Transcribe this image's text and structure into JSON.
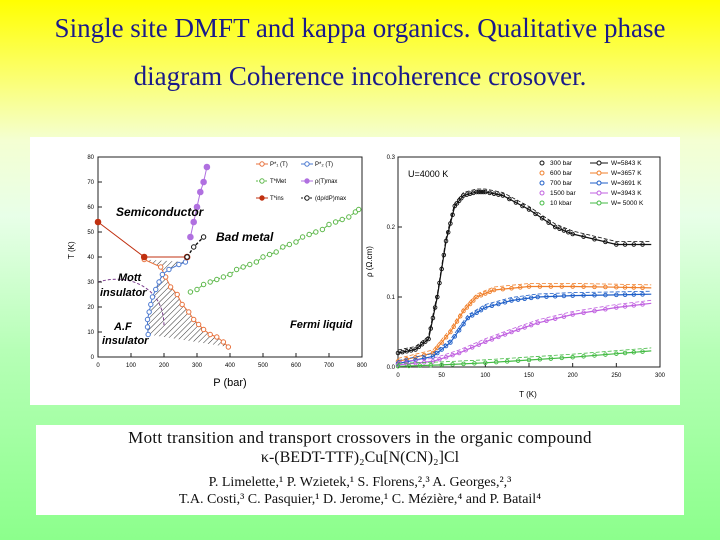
{
  "slide": {
    "title_line1": "Single site DMFT  and kappa organics. Qualitative phase",
    "title_line2": "diagram Coherence incoherence crosover.",
    "bg_top": "#ffff00",
    "bg_bottom": "#8cff8c",
    "title_color": "#1a1a8a"
  },
  "reference": {
    "title": "Mott transition and transport crossovers in the organic compound",
    "formula": "κ-(BEDT-TTF)₂Cu[N(CN)₂]Cl",
    "authors1": "P. Limelette,¹ P. Wzietek,¹ S. Florens,²,³ A. Georges,²,³",
    "authors2": "T.A. Costi,³ C. Pasquier,¹ D. Jerome,¹ C. Mézière,⁴ and P. Batail⁴"
  },
  "chart_data": [
    {
      "type": "scatter",
      "title": "",
      "xlabel": "P (bar)",
      "ylabel": "T (K)",
      "xlim": [
        0,
        800
      ],
      "ylim": [
        0,
        80
      ],
      "xticks": [
        "0",
        "100",
        "200",
        "300",
        "400",
        "500",
        "600",
        "700",
        "800"
      ],
      "yticks": [
        "0",
        "10",
        "20",
        "30",
        "40",
        "50",
        "60",
        "70",
        "80"
      ],
      "regions": [
        "Semiconductor",
        "Bad metal",
        "Mott insulator",
        "Fermi liquid",
        "A.F insulator"
      ],
      "legend": [
        "P*₁ (T)",
        "P*₂ (T)",
        "T*Met",
        "ρ(T)max",
        "T*ins",
        "(dρ/dP)max"
      ],
      "series": [
        {
          "name": "P*₁ (T)",
          "color": "#e8713c",
          "x": [
            140,
            190,
            205,
            220,
            240,
            255,
            275,
            290,
            305,
            320,
            340,
            360,
            380,
            395
          ],
          "y": [
            39,
            36,
            32,
            28,
            25,
            21,
            18,
            15,
            13,
            11,
            9,
            8,
            6,
            4
          ]
        },
        {
          "name": "P*₂ (T)",
          "color": "#4a78d0",
          "x": [
            265,
            245,
            215,
            195,
            185,
            175,
            165,
            160,
            155,
            150,
            150,
            152
          ],
          "y": [
            38,
            37,
            35,
            33,
            30,
            27,
            24,
            21,
            18,
            15,
            12,
            9
          ]
        },
        {
          "name": "T*Met",
          "color": "#5db84a",
          "x": [
            280,
            300,
            320,
            340,
            360,
            380,
            400,
            420,
            440,
            460,
            480,
            500,
            520,
            540,
            560,
            580,
            600,
            620,
            640,
            660,
            680,
            700,
            720,
            740,
            760,
            780,
            790
          ],
          "y": [
            26,
            27,
            29,
            30,
            31,
            32,
            33,
            35,
            36,
            37,
            38,
            40,
            41,
            42,
            44,
            45,
            46,
            48,
            49,
            50,
            51,
            53,
            54,
            55,
            56,
            58,
            59
          ]
        },
        {
          "name": "ρ(T)max",
          "color": "#b070e0",
          "x": [
            280,
            290,
            300,
            310,
            320,
            330
          ],
          "y": [
            48,
            54,
            60,
            66,
            70,
            76
          ]
        },
        {
          "name": "T*ins",
          "color": "#c03010",
          "x": [
            0,
            140,
            270
          ],
          "y": [
            54,
            40,
            40
          ]
        },
        {
          "name": "(dρ/dP)max",
          "color": "#111111",
          "x": [
            270,
            290,
            320
          ],
          "y": [
            40,
            44,
            48
          ]
        }
      ]
    },
    {
      "type": "line",
      "title": "",
      "xlabel": "T (K)",
      "ylabel": "ρ (Ω.cm)",
      "xlim": [
        0,
        300
      ],
      "ylim": [
        0,
        0.3
      ],
      "xticks": [
        "0",
        "50",
        "100",
        "150",
        "200",
        "250",
        "300"
      ],
      "yticks": [
        "0.0",
        "0.1",
        "0.2",
        "0.3"
      ],
      "annotation": "U=4000 K",
      "legend_data": [
        "300 bar",
        "600 bar",
        "700 bar",
        "1500 bar",
        "10 kbar"
      ],
      "legend_model": [
        "W=5843 K",
        "W=3657 K",
        "W=3691 K",
        "W=3943 K",
        "W= 5000 K"
      ],
      "series": [
        {
          "name": "300 bar",
          "color": "#111111",
          "x": [
            0,
            20,
            35,
            45,
            55,
            65,
            75,
            90,
            100,
            120,
            150,
            180,
            200,
            250,
            290
          ],
          "y": [
            0.02,
            0.025,
            0.04,
            0.1,
            0.18,
            0.23,
            0.245,
            0.25,
            0.25,
            0.245,
            0.225,
            0.2,
            0.19,
            0.175,
            0.175
          ]
        },
        {
          "name": "600 bar",
          "color": "#f07f2a",
          "x": [
            0,
            40,
            60,
            75,
            90,
            110,
            150,
            200,
            250,
            290
          ],
          "y": [
            0.008,
            0.02,
            0.05,
            0.08,
            0.1,
            0.11,
            0.115,
            0.115,
            0.114,
            0.113
          ]
        },
        {
          "name": "700 bar",
          "color": "#1f5fc8",
          "x": [
            0,
            40,
            60,
            80,
            100,
            130,
            160,
            200,
            250,
            290
          ],
          "y": [
            0.005,
            0.015,
            0.035,
            0.07,
            0.085,
            0.095,
            0.1,
            0.102,
            0.103,
            0.104
          ]
        },
        {
          "name": "1500 bar",
          "color": "#c060e0",
          "x": [
            0,
            40,
            70,
            100,
            130,
            160,
            200,
            250,
            290
          ],
          "y": [
            0.003,
            0.008,
            0.02,
            0.036,
            0.05,
            0.063,
            0.075,
            0.085,
            0.091
          ]
        },
        {
          "name": "10 kbar",
          "color": "#44bb44",
          "x": [
            0,
            50,
            100,
            150,
            200,
            250,
            290
          ],
          "y": [
            0.001,
            0.003,
            0.006,
            0.01,
            0.014,
            0.019,
            0.023
          ]
        }
      ]
    }
  ]
}
